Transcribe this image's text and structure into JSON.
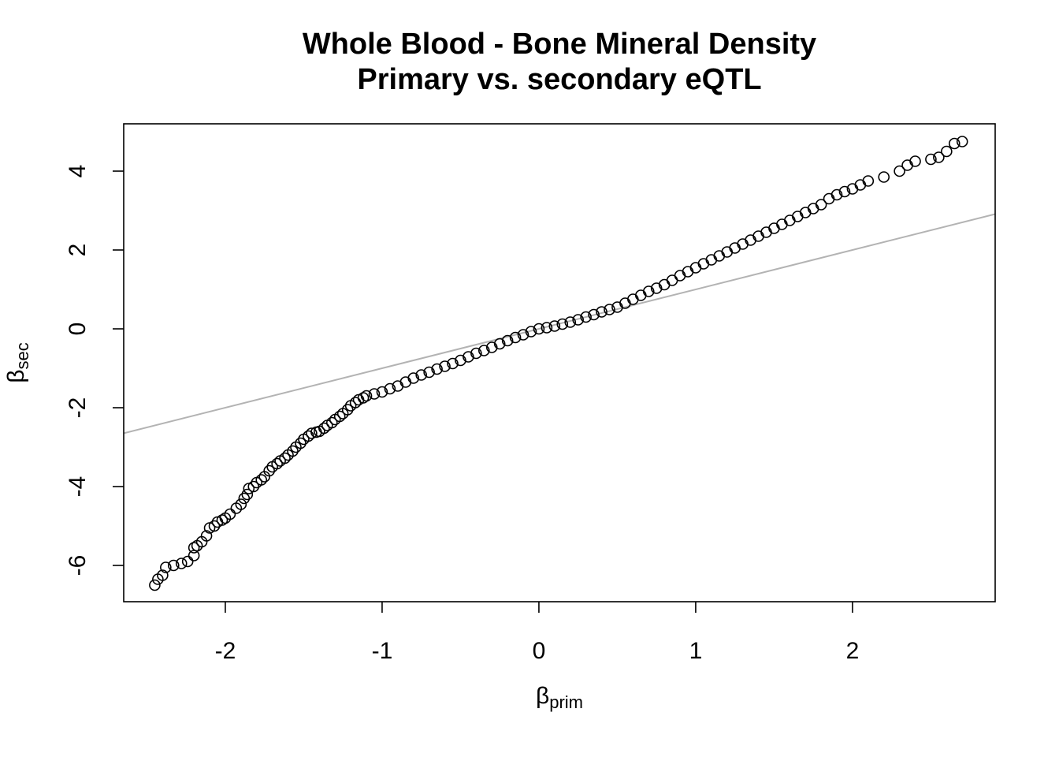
{
  "chart_data": {
    "type": "scatter",
    "title": [
      "Whole Blood - Bone Mineral Density",
      "Primary vs. secondary eQTL"
    ],
    "x_label": {
      "symbol": "β",
      "subscript": "prim"
    },
    "y_label": {
      "symbol": "β",
      "subscript": "sec"
    },
    "xlim": [
      -2.648,
      2.91
    ],
    "ylim": [
      -6.92,
      5.2
    ],
    "xticks": [
      -2,
      -1,
      0,
      1,
      2
    ],
    "yticks": [
      -6,
      -4,
      -2,
      0,
      2,
      4
    ],
    "color": "#000000",
    "reference_line": {
      "slope": 1,
      "intercept": 0,
      "color": "#b3b3b3"
    },
    "x": [
      -2.45,
      -2.43,
      -2.4,
      -2.38,
      -2.33,
      -2.28,
      -2.24,
      -2.2,
      -2.2,
      -2.18,
      -2.15,
      -2.12,
      -2.1,
      -2.07,
      -2.05,
      -2.02,
      -2.0,
      -1.97,
      -1.93,
      -1.9,
      -1.88,
      -1.86,
      -1.85,
      -1.82,
      -1.8,
      -1.77,
      -1.75,
      -1.72,
      -1.7,
      -1.67,
      -1.65,
      -1.62,
      -1.6,
      -1.57,
      -1.55,
      -1.52,
      -1.5,
      -1.47,
      -1.45,
      -1.42,
      -1.4,
      -1.37,
      -1.35,
      -1.32,
      -1.3,
      -1.27,
      -1.25,
      -1.22,
      -1.2,
      -1.17,
      -1.15,
      -1.12,
      -1.1,
      -1.05,
      -1.0,
      -0.95,
      -0.9,
      -0.85,
      -0.8,
      -0.75,
      -0.7,
      -0.65,
      -0.6,
      -0.55,
      -0.5,
      -0.45,
      -0.4,
      -0.35,
      -0.3,
      -0.25,
      -0.2,
      -0.15,
      -0.1,
      -0.05,
      0,
      0.05,
      0.1,
      0.15,
      0.2,
      0.25,
      0.3,
      0.35,
      0.4,
      0.45,
      0.5,
      0.55,
      0.6,
      0.65,
      0.7,
      0.75,
      0.8,
      0.85,
      0.9,
      0.95,
      1.0,
      1.05,
      1.1,
      1.15,
      1.2,
      1.25,
      1.3,
      1.35,
      1.4,
      1.45,
      1.5,
      1.55,
      1.6,
      1.65,
      1.7,
      1.75,
      1.8,
      1.85,
      1.9,
      1.95,
      2.0,
      2.05,
      2.1,
      2.2,
      2.3,
      2.35,
      2.4,
      2.5,
      2.55,
      2.6,
      2.65,
      2.7
    ],
    "values": [
      -6.5,
      -6.35,
      -6.25,
      -6.05,
      -6.0,
      -5.95,
      -5.9,
      -5.75,
      -5.55,
      -5.5,
      -5.4,
      -5.25,
      -5.05,
      -5.0,
      -4.9,
      -4.85,
      -4.8,
      -4.7,
      -4.55,
      -4.45,
      -4.3,
      -4.2,
      -4.05,
      -4.0,
      -3.9,
      -3.83,
      -3.75,
      -3.6,
      -3.5,
      -3.42,
      -3.35,
      -3.28,
      -3.2,
      -3.1,
      -3.0,
      -2.9,
      -2.8,
      -2.72,
      -2.65,
      -2.62,
      -2.6,
      -2.52,
      -2.45,
      -2.38,
      -2.3,
      -2.22,
      -2.15,
      -2.05,
      -1.95,
      -1.87,
      -1.8,
      -1.75,
      -1.7,
      -1.65,
      -1.6,
      -1.52,
      -1.45,
      -1.35,
      -1.25,
      -1.17,
      -1.1,
      -1.02,
      -0.95,
      -0.88,
      -0.8,
      -0.71,
      -0.62,
      -0.55,
      -0.47,
      -0.38,
      -0.3,
      -0.22,
      -0.15,
      -0.07,
      0,
      0.03,
      0.07,
      0.12,
      0.17,
      0.23,
      0.3,
      0.36,
      0.43,
      0.49,
      0.55,
      0.65,
      0.75,
      0.85,
      0.95,
      1.03,
      1.12,
      1.23,
      1.35,
      1.45,
      1.55,
      1.65,
      1.75,
      1.85,
      1.95,
      2.05,
      2.15,
      2.25,
      2.35,
      2.45,
      2.55,
      2.65,
      2.75,
      2.85,
      2.95,
      3.05,
      3.15,
      3.3,
      3.4,
      3.48,
      3.55,
      3.65,
      3.75,
      3.85,
      4.0,
      4.15,
      4.25,
      4.3,
      4.35,
      4.5,
      4.7,
      4.75
    ]
  }
}
